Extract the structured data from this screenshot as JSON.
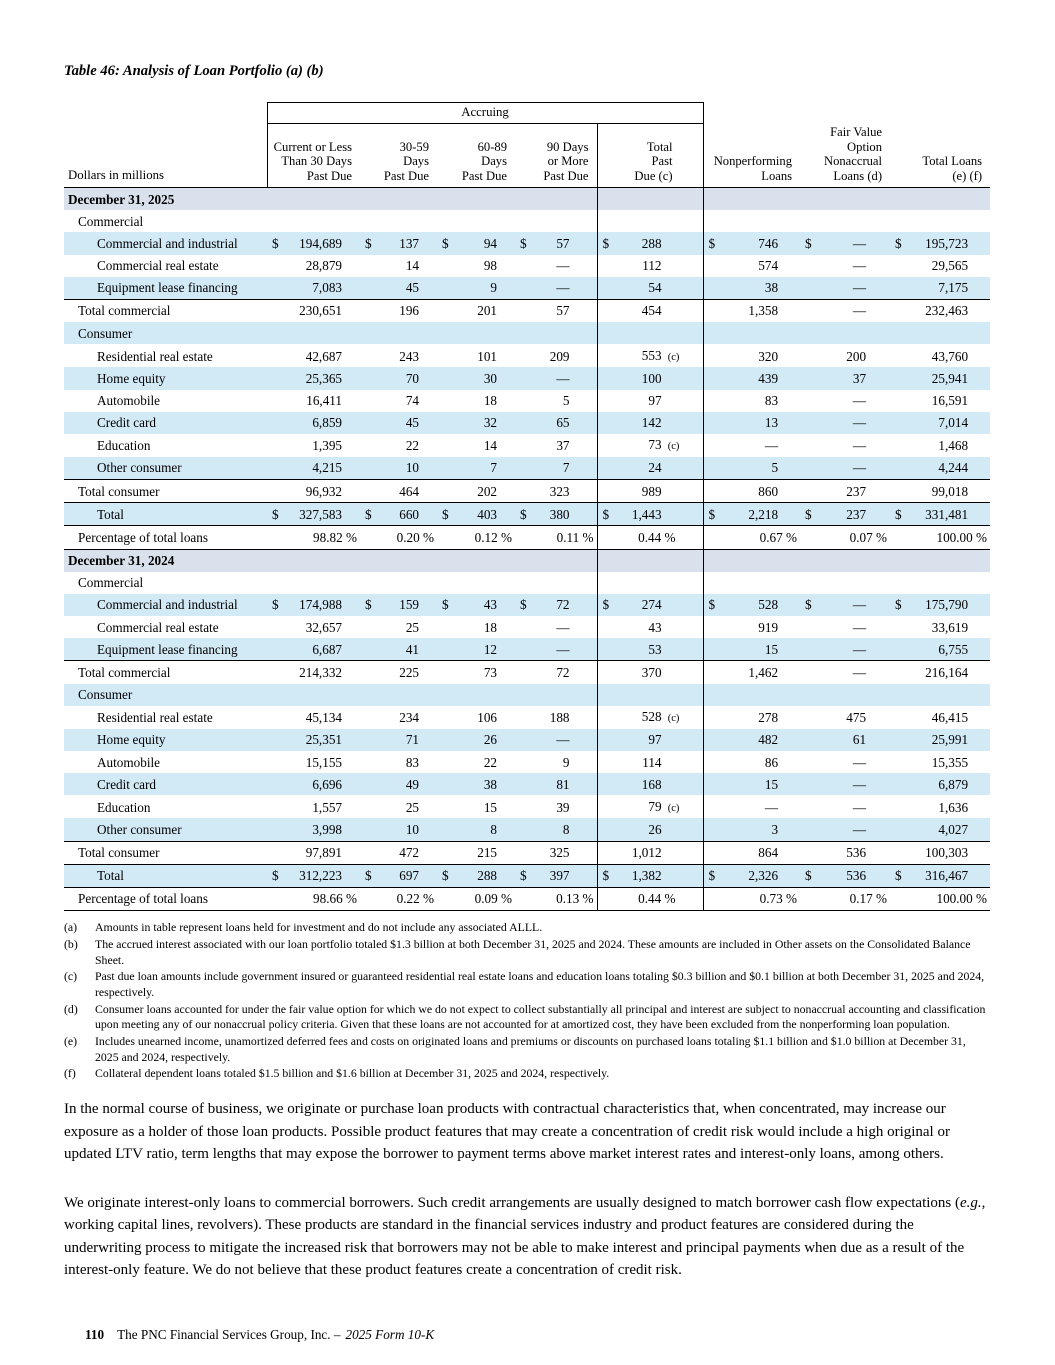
{
  "title": "Table 46: Analysis of Loan Portfolio (a) (b)",
  "table": {
    "accruing_label": "Accruing",
    "dollars_label": "Dollars in millions",
    "columns": [
      "Current or Less\nThan 30 Days\nPast Due",
      "30-59\nDays\nPast Due",
      "60-89\nDays\nPast Due",
      "90 Days\nor More\nPast Due",
      "Total\nPast\nDue (c)",
      "Nonperforming\nLoans",
      "Fair Value\nOption\nNonaccrual\nLoans (d)",
      "Total Loans\n(e) (f)"
    ],
    "rows": [
      {
        "label": "December 31, 2025",
        "type": "date",
        "indent": 0,
        "values": [
          "",
          "",
          "",
          "",
          "",
          "",
          "",
          ""
        ]
      },
      {
        "label": "Commercial",
        "type": "cat",
        "indent": 1,
        "values": [
          "",
          "",
          "",
          "",
          "",
          "",
          "",
          ""
        ]
      },
      {
        "label": "Commercial and industrial",
        "type": "item",
        "indent": 2,
        "dollar": true,
        "values": [
          "194,689",
          "137",
          "94",
          "57",
          "288",
          "746",
          "—",
          "195,723"
        ]
      },
      {
        "label": "Commercial real estate",
        "type": "item",
        "indent": 2,
        "values": [
          "28,879",
          "14",
          "98",
          "—",
          "112",
          "574",
          "—",
          "29,565"
        ]
      },
      {
        "label": "Equipment lease financing",
        "type": "item",
        "indent": 2,
        "values": [
          "7,083",
          "45",
          "9",
          "—",
          "54",
          "38",
          "—",
          "7,175"
        ]
      },
      {
        "label": "Total commercial",
        "type": "totalsub",
        "indent": 1,
        "values": [
          "230,651",
          "196",
          "201",
          "57",
          "454",
          "1,358",
          "—",
          "232,463"
        ]
      },
      {
        "label": "Consumer",
        "type": "cat",
        "indent": 1,
        "values": [
          "",
          "",
          "",
          "",
          "",
          "",
          "",
          ""
        ]
      },
      {
        "label": "Residential real estate",
        "type": "item",
        "indent": 2,
        "sfx": "(c)",
        "values": [
          "42,687",
          "243",
          "101",
          "209",
          "553",
          "320",
          "200",
          "43,760"
        ]
      },
      {
        "label": "Home equity",
        "type": "item",
        "indent": 2,
        "values": [
          "25,365",
          "70",
          "30",
          "—",
          "100",
          "439",
          "37",
          "25,941"
        ]
      },
      {
        "label": "Automobile",
        "type": "item",
        "indent": 2,
        "values": [
          "16,411",
          "74",
          "18",
          "5",
          "97",
          "83",
          "—",
          "16,591"
        ]
      },
      {
        "label": "Credit card",
        "type": "item",
        "indent": 2,
        "values": [
          "6,859",
          "45",
          "32",
          "65",
          "142",
          "13",
          "—",
          "7,014"
        ]
      },
      {
        "label": "Education",
        "type": "item",
        "indent": 2,
        "sfx": "(c)",
        "values": [
          "1,395",
          "22",
          "14",
          "37",
          "73",
          "—",
          "—",
          "1,468"
        ]
      },
      {
        "label": "Other consumer",
        "type": "item",
        "indent": 2,
        "values": [
          "4,215",
          "10",
          "7",
          "7",
          "24",
          "5",
          "—",
          "4,244"
        ]
      },
      {
        "label": "Total consumer",
        "type": "totalsub",
        "indent": 1,
        "values": [
          "96,932",
          "464",
          "202",
          "323",
          "989",
          "860",
          "237",
          "99,018"
        ]
      },
      {
        "label": "Total",
        "type": "grand",
        "indent": 2,
        "dollar": true,
        "values": [
          "327,583",
          "660",
          "403",
          "380",
          "1,443",
          "2,218",
          "237",
          "331,481"
        ]
      },
      {
        "label": "Percentage of total loans",
        "type": "percent",
        "indent": 1,
        "values": [
          "98.82 %",
          "0.20 %",
          "0.12 %",
          "0.11 %",
          "0.44 %",
          "0.67 %",
          "0.07 %",
          "100.00 %"
        ]
      },
      {
        "label": "December 31, 2024",
        "type": "date",
        "indent": 0,
        "values": [
          "",
          "",
          "",
          "",
          "",
          "",
          "",
          ""
        ]
      },
      {
        "label": "Commercial",
        "type": "cat",
        "indent": 1,
        "values": [
          "",
          "",
          "",
          "",
          "",
          "",
          "",
          ""
        ]
      },
      {
        "label": "Commercial and industrial",
        "type": "item",
        "indent": 2,
        "dollar": true,
        "values": [
          "174,988",
          "159",
          "43",
          "72",
          "274",
          "528",
          "—",
          "175,790"
        ]
      },
      {
        "label": "Commercial real estate",
        "type": "item",
        "indent": 2,
        "values": [
          "32,657",
          "25",
          "18",
          "—",
          "43",
          "919",
          "—",
          "33,619"
        ]
      },
      {
        "label": "Equipment lease financing",
        "type": "item",
        "indent": 2,
        "values": [
          "6,687",
          "41",
          "12",
          "—",
          "53",
          "15",
          "—",
          "6,755"
        ]
      },
      {
        "label": "Total commercial",
        "type": "totalsub",
        "indent": 1,
        "values": [
          "214,332",
          "225",
          "73",
          "72",
          "370",
          "1,462",
          "—",
          "216,164"
        ]
      },
      {
        "label": "Consumer",
        "type": "cat",
        "indent": 1,
        "values": [
          "",
          "",
          "",
          "",
          "",
          "",
          "",
          ""
        ]
      },
      {
        "label": "Residential real estate",
        "type": "item",
        "indent": 2,
        "sfx": "(c)",
        "values": [
          "45,134",
          "234",
          "106",
          "188",
          "528",
          "278",
          "475",
          "46,415"
        ]
      },
      {
        "label": "Home equity",
        "type": "item",
        "indent": 2,
        "values": [
          "25,351",
          "71",
          "26",
          "—",
          "97",
          "482",
          "61",
          "25,991"
        ]
      },
      {
        "label": "Automobile",
        "type": "item",
        "indent": 2,
        "values": [
          "15,155",
          "83",
          "22",
          "9",
          "114",
          "86",
          "—",
          "15,355"
        ]
      },
      {
        "label": "Credit card",
        "type": "item",
        "indent": 2,
        "values": [
          "6,696",
          "49",
          "38",
          "81",
          "168",
          "15",
          "—",
          "6,879"
        ]
      },
      {
        "label": "Education",
        "type": "item",
        "indent": 2,
        "sfx": "(c)",
        "values": [
          "1,557",
          "25",
          "15",
          "39",
          "79",
          "—",
          "—",
          "1,636"
        ]
      },
      {
        "label": "Other consumer",
        "type": "item",
        "indent": 2,
        "values": [
          "3,998",
          "10",
          "8",
          "8",
          "26",
          "3",
          "—",
          "4,027"
        ]
      },
      {
        "label": "Total consumer",
        "type": "totalsub",
        "indent": 1,
        "values": [
          "97,891",
          "472",
          "215",
          "325",
          "1,012",
          "864",
          "536",
          "100,303"
        ]
      },
      {
        "label": "Total",
        "type": "grand",
        "indent": 2,
        "dollar": true,
        "values": [
          "312,223",
          "697",
          "288",
          "397",
          "1,382",
          "2,326",
          "536",
          "316,467"
        ]
      },
      {
        "label": "Percentage of total loans",
        "type": "percent",
        "indent": 1,
        "values": [
          "98.66 %",
          "0.22 %",
          "0.09 %",
          "0.13 %",
          "0.44 %",
          "0.73 %",
          "0.17 %",
          "100.00 %"
        ]
      }
    ]
  },
  "footnotes": [
    {
      "marker": "(a)",
      "text": "Amounts in table represent loans held for investment and do not include any associated ALLL."
    },
    {
      "marker": "(b)",
      "text": "The accrued interest associated with our loan portfolio totaled $1.3 billion at both December 31, 2025 and 2024. These amounts are included in Other assets on the Consolidated Balance Sheet."
    },
    {
      "marker": "(c)",
      "text": "Past due loan amounts include government insured or guaranteed residential real estate loans and education loans totaling $0.3 billion and $0.1 billion at both December 31, 2025 and 2024, respectively."
    },
    {
      "marker": "(d)",
      "text": "Consumer loans accounted for under the fair value option for which we do not expect to collect substantially all principal and interest are subject to nonaccrual accounting and classification upon meeting any of our nonaccrual policy criteria. Given that these loans are not accounted for at amortized cost, they have been excluded from the nonperforming loan population."
    },
    {
      "marker": "(e)",
      "text": "Includes unearned income, unamortized deferred fees and costs on originated loans and premiums or discounts on purchased loans totaling $1.1 billion and $1.0 billion at December 31, 2025 and 2024, respectively."
    },
    {
      "marker": "(f)",
      "text": "Collateral dependent loans totaled $1.5 billion and $1.6 billion at December 31, 2025 and 2024, respectively."
    }
  ],
  "paragraphs": [
    [
      {
        "text": "In the normal course of business, we originate or purchase loan products with contractual characteristics that, when concentrated, may increase our exposure as a holder of those loan products. Possible product features that may create a concentration of credit risk would include a high original or updated LTV ratio, term lengths that may expose the borrower to payment terms above market interest rates and interest-only loans, among others."
      }
    ],
    [
      {
        "text": "We originate interest-only loans to commercial borrowers. Such credit arrangements are usually designed to match borrower cash flow expectations ("
      },
      {
        "text": "e.g.",
        "italic": true
      },
      {
        "text": ", working capital lines, revolvers). These products are standard in the financial services industry and product features are considered during the underwriting process to mitigate the increased risk that borrowers may not be able to make interest and principal payments when due as a result of the interest-only feature. We do not believe that these product features create a concentration of credit risk."
      }
    ]
  ],
  "footer": {
    "page_number": "110",
    "company_text": "The PNC Financial Services Group, Inc. –",
    "form_text": "2025 Form 10-K"
  }
}
